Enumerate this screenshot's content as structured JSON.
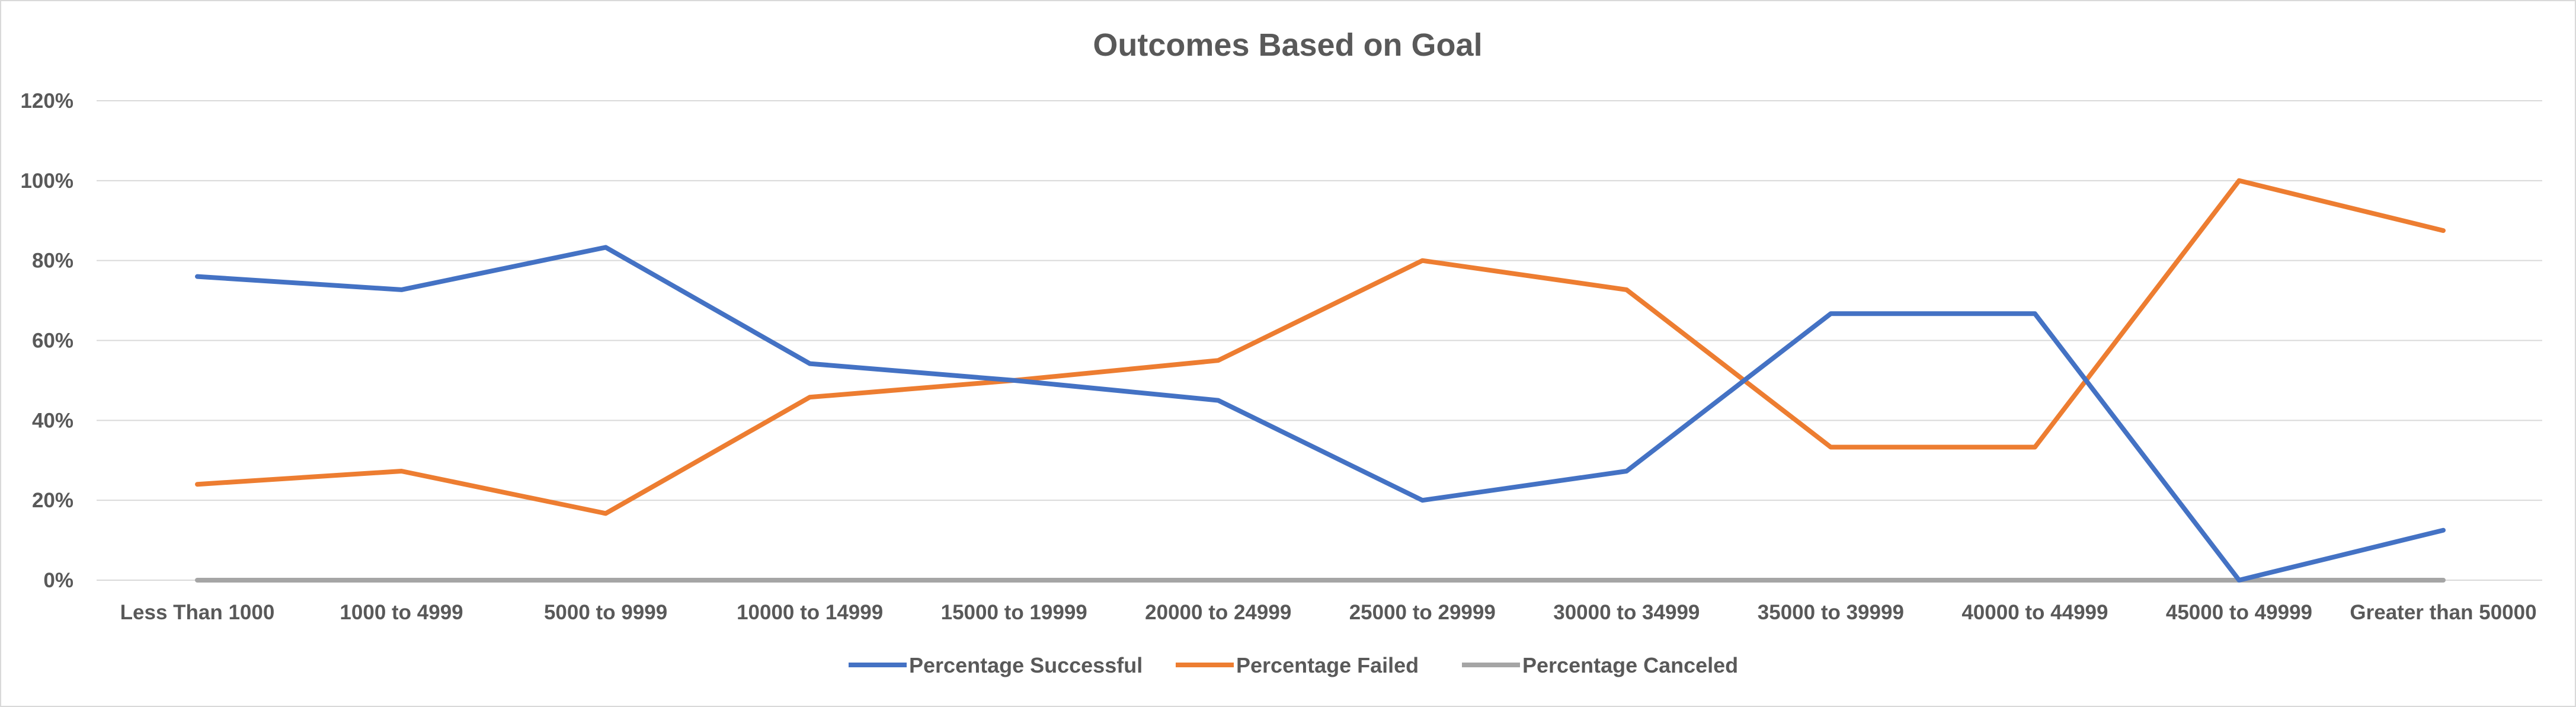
{
  "chart_data": {
    "type": "line",
    "title": "Outcomes Based on Goal",
    "xlabel": "",
    "ylabel": "",
    "categories": [
      "Less Than 1000",
      "1000 to 4999",
      "5000 to 9999",
      "10000 to 14999",
      "15000 to 19999",
      "20000 to 24999",
      "25000 to 29999",
      "30000 to 34999",
      "35000 to 39999",
      "40000 to 44999",
      "45000 to 49999",
      "Greater than 50000"
    ],
    "ylim": [
      0,
      120
    ],
    "yticks": [
      "0%",
      "20%",
      "40%",
      "60%",
      "80%",
      "100%",
      "120%"
    ],
    "y_unit": "percent",
    "grid": true,
    "legend_position": "bottom",
    "series": [
      {
        "name": "Percentage Successful",
        "color": "#4472c4",
        "values": [
          76,
          72.7,
          83.3,
          54.2,
          50,
          45,
          20,
          27.3,
          66.7,
          66.7,
          0,
          12.5
        ]
      },
      {
        "name": "Percentage Failed",
        "color": "#ed7d31",
        "values": [
          24,
          27.3,
          16.7,
          45.8,
          50,
          55,
          80,
          72.7,
          33.3,
          33.3,
          100,
          87.5
        ]
      },
      {
        "name": "Percentage Canceled",
        "color": "#a5a5a5",
        "values": [
          0,
          0,
          0,
          0,
          0,
          0,
          0,
          0,
          0,
          0,
          0,
          0
        ]
      }
    ]
  }
}
